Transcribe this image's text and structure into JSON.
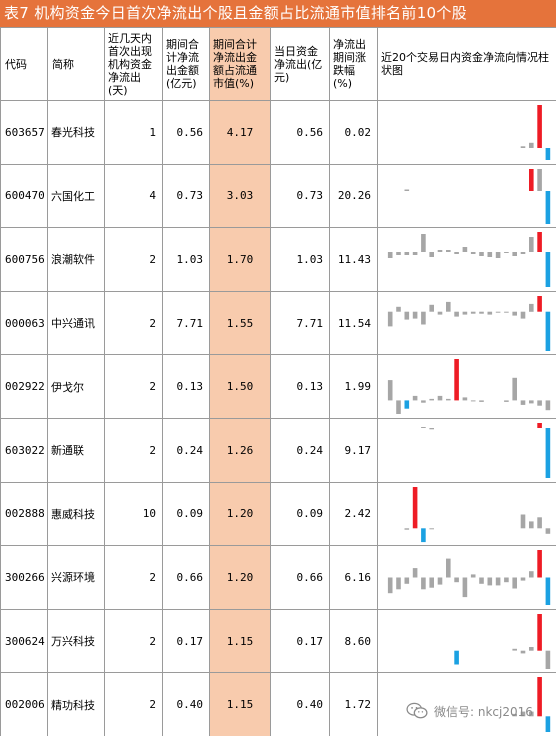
{
  "title": "表7 机构资金今日首次净流出个股且金额占比流通市值排名前10个股",
  "headers": {
    "code": "代码",
    "name": "简称",
    "days": "近几天内首次出现机构资金净流出(天)",
    "period_net": "期间合计净流出金额(亿元)",
    "period_pct": "期间合计净流出金额占流通市值(%)",
    "today_net": "当日资金净流出(亿元)",
    "period_change": "净流出期间涨跌幅(%)",
    "bar_chart": "近20个交易日内资金净流向情况柱状图"
  },
  "colors": {
    "title_bg": "#e5733b",
    "highlight_col": "#f8cbad",
    "bar_red": "#ee1c25",
    "bar_blue": "#1ba1e2",
    "bar_gray": "#a6a6a6"
  },
  "rows": [
    {
      "code": "603657",
      "name": "春光科技",
      "days": "1",
      "period_net": "0.56",
      "period_pct": "4.17",
      "today_net": "0.56",
      "period_change": "0.02"
    },
    {
      "code": "600470",
      "name": "六国化工",
      "days": "4",
      "period_net": "0.73",
      "period_pct": "3.03",
      "today_net": "0.73",
      "period_change": "20.26"
    },
    {
      "code": "600756",
      "name": "浪潮软件",
      "days": "2",
      "period_net": "1.03",
      "period_pct": "1.70",
      "today_net": "1.03",
      "period_change": "11.43"
    },
    {
      "code": "000063",
      "name": "中兴通讯",
      "days": "2",
      "period_net": "7.71",
      "period_pct": "1.55",
      "today_net": "7.71",
      "period_change": "11.54"
    },
    {
      "code": "002922",
      "name": "伊戈尔",
      "days": "2",
      "period_net": "0.13",
      "period_pct": "1.50",
      "today_net": "0.13",
      "period_change": "1.99"
    },
    {
      "code": "603022",
      "name": "新通联",
      "days": "2",
      "period_net": "0.24",
      "period_pct": "1.26",
      "today_net": "0.24",
      "period_change": "9.17"
    },
    {
      "code": "002888",
      "name": "惠威科技",
      "days": "10",
      "period_net": "0.09",
      "period_pct": "1.20",
      "today_net": "0.09",
      "period_change": "2.42"
    },
    {
      "code": "300266",
      "name": "兴源环境",
      "days": "2",
      "period_net": "0.66",
      "period_pct": "1.20",
      "today_net": "0.66",
      "period_change": "6.16"
    },
    {
      "code": "300624",
      "name": "万兴科技",
      "days": "2",
      "period_net": "0.17",
      "period_pct": "1.15",
      "today_net": "0.17",
      "period_change": "8.60"
    },
    {
      "code": "002006",
      "name": "精功科技",
      "days": "2",
      "period_net": "0.40",
      "period_pct": "1.15",
      "today_net": "0.40",
      "period_change": "1.72"
    }
  ],
  "bar_charts": [
    {
      "values": [
        0,
        0,
        0,
        0,
        0,
        0,
        0,
        0,
        0,
        0,
        0,
        0,
        0,
        0,
        0,
        0,
        0.2,
        0.6,
        5.0,
        -1.4
      ],
      "colors": [
        "g",
        "g",
        "g",
        "g",
        "g",
        "g",
        "g",
        "g",
        "g",
        "g",
        "g",
        "g",
        "g",
        "g",
        "g",
        "g",
        "g",
        "g",
        "r",
        "b"
      ]
    },
    {
      "values": [
        0,
        0,
        0.2,
        0,
        0,
        0,
        0,
        0,
        0,
        0,
        0,
        0,
        0,
        0,
        0,
        0,
        0,
        3.0,
        3.0,
        -4.5
      ],
      "colors": [
        "g",
        "g",
        "g",
        "g",
        "g",
        "g",
        "g",
        "g",
        "g",
        "g",
        "g",
        "g",
        "g",
        "g",
        "g",
        "g",
        "g",
        "r",
        "g",
        "b"
      ]
    },
    {
      "values": [
        -0.6,
        -0.3,
        -0.3,
        -0.3,
        1.8,
        -0.5,
        0.2,
        0.2,
        -0.2,
        0.5,
        -0.2,
        -0.4,
        -0.5,
        -0.6,
        -0.1,
        -0.4,
        -0.2,
        1.5,
        2.0,
        -3.5
      ],
      "colors": [
        "g",
        "g",
        "g",
        "g",
        "g",
        "g",
        "g",
        "g",
        "g",
        "g",
        "g",
        "g",
        "g",
        "g",
        "g",
        "g",
        "g",
        "g",
        "r",
        "b"
      ]
    },
    {
      "values": [
        -1.5,
        0.5,
        -0.8,
        -0.7,
        -1.3,
        0.7,
        -0.3,
        1.0,
        -0.5,
        -0.3,
        -0.2,
        -0.2,
        -0.3,
        -0.1,
        -0.1,
        -0.4,
        -0.7,
        0.8,
        1.6,
        -4.0
      ],
      "colors": [
        "g",
        "g",
        "g",
        "g",
        "g",
        "g",
        "g",
        "g",
        "g",
        "g",
        "g",
        "g",
        "g",
        "g",
        "g",
        "g",
        "g",
        "g",
        "r",
        "b"
      ]
    },
    {
      "values": [
        2.7,
        -1.8,
        -1.1,
        0.6,
        -0.3,
        0.2,
        0.6,
        0.2,
        5.5,
        0.4,
        -0.1,
        -0.2,
        0,
        0,
        -0.2,
        3.0,
        -0.6,
        -0.4,
        -0.7,
        -1.3
      ],
      "colors": [
        "g",
        "g",
        "b",
        "g",
        "g",
        "g",
        "g",
        "g",
        "r",
        "g",
        "g",
        "g",
        "g",
        "g",
        "g",
        "g",
        "g",
        "g",
        "g",
        "g"
      ]
    },
    {
      "values": [
        0,
        0,
        0,
        0,
        0.1,
        -0.15,
        0,
        0,
        0,
        0,
        0,
        0,
        0,
        0,
        0,
        0,
        0,
        0,
        0.6,
        -6.0
      ],
      "colors": [
        "g",
        "g",
        "g",
        "g",
        "g",
        "g",
        "g",
        "g",
        "g",
        "g",
        "g",
        "g",
        "g",
        "g",
        "g",
        "g",
        "g",
        "g",
        "r",
        "b"
      ]
    },
    {
      "values": [
        0,
        0,
        -0.2,
        0,
        0,
        -0.1,
        0,
        0,
        0,
        0,
        0,
        0,
        0,
        0,
        0,
        0,
        2.0,
        1.0,
        1.6,
        -0.8
      ],
      "colors": [
        "g",
        "g",
        "g",
        "r",
        "b",
        "g",
        "g",
        "g",
        "g",
        "g",
        "g",
        "g",
        "g",
        "g",
        "g",
        "g",
        "g",
        "g",
        "g",
        "g"
      ],
      "override": [
        0,
        0,
        -0.2,
        6.0,
        -2.0,
        -0.1,
        0,
        0,
        0,
        0,
        0,
        0,
        0,
        0,
        0,
        0,
        2.0,
        1.0,
        1.6,
        -0.8
      ]
    },
    {
      "values": [
        -2.0,
        -1.5,
        -0.8,
        1.2,
        -1.5,
        -1.3,
        -0.9,
        2.4,
        -0.6,
        -2.5,
        0.4,
        -0.8,
        -1.0,
        -1.0,
        -0.6,
        -1.4,
        -0.4,
        0.8,
        3.5,
        -3.5
      ],
      "colors": [
        "g",
        "g",
        "g",
        "g",
        "g",
        "g",
        "g",
        "g",
        "g",
        "g",
        "g",
        "g",
        "g",
        "g",
        "g",
        "g",
        "g",
        "g",
        "r",
        "b"
      ]
    },
    {
      "values": [
        0,
        0,
        0,
        0,
        0,
        0,
        0,
        0,
        -1.5,
        0,
        0,
        0,
        0,
        0,
        0,
        0.2,
        -0.3,
        0.4,
        4.0,
        -2.0
      ],
      "colors": [
        "g",
        "g",
        "g",
        "g",
        "g",
        "g",
        "g",
        "g",
        "b",
        "g",
        "g",
        "g",
        "g",
        "g",
        "g",
        "g",
        "g",
        "g",
        "r",
        "g"
      ]
    },
    {
      "values": [
        0,
        0,
        0,
        0,
        0,
        0,
        0,
        0,
        0,
        0,
        0,
        0,
        0,
        0,
        0,
        0.3,
        0.6,
        0.6,
        5.0,
        -2.0
      ],
      "colors": [
        "g",
        "g",
        "g",
        "g",
        "g",
        "g",
        "g",
        "g",
        "g",
        "g",
        "g",
        "g",
        "g",
        "g",
        "g",
        "g",
        "g",
        "g",
        "r",
        "b"
      ]
    }
  ],
  "watermark": {
    "icon": "wechat-icon",
    "text": "微信号: nkcj2016"
  }
}
